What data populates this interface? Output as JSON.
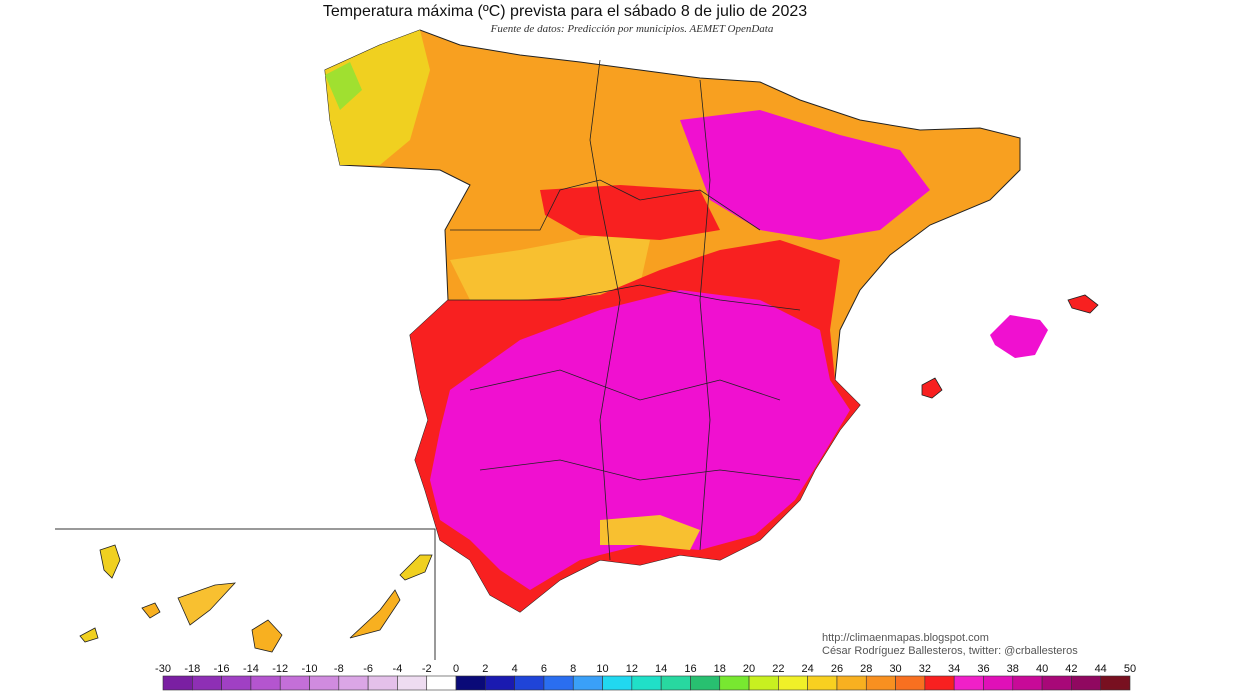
{
  "header": {
    "title": "Temperatura máxima (ºC) prevista para el sábado 8 de julio de 2023",
    "subtitle": "Fuente de datos: Predicción por municipios. AEMET OpenData"
  },
  "credits": [
    "http://climaenmapas.blogspot.com",
    "César Rodríguez Ballesteros, twitter: @crballesteros"
  ],
  "legend": {
    "ticks": [
      -30,
      -18,
      -16,
      -14,
      -12,
      -10,
      -8,
      -6,
      -4,
      -2,
      0,
      2,
      4,
      6,
      8,
      10,
      12,
      14,
      16,
      18,
      20,
      22,
      24,
      26,
      28,
      30,
      32,
      34,
      36,
      38,
      40,
      42,
      44,
      50
    ],
    "colors": [
      "#7a1fa2",
      "#8e2fb5",
      "#a040c4",
      "#b455cf",
      "#c46fd8",
      "#d08bdf",
      "#dba6e6",
      "#e4c0ea",
      "#eedcf1",
      "#ffffff",
      "#0a0a78",
      "#1a1ab0",
      "#1f44d8",
      "#2a6ef0",
      "#3aa0f8",
      "#21d8f0",
      "#20e0c8",
      "#28d8a0",
      "#28c070",
      "#78e830",
      "#c8f020",
      "#f0f028",
      "#f8d020",
      "#f8b020",
      "#f89020",
      "#f87020",
      "#f82020",
      "#f020c8",
      "#e010b8",
      "#c80a98",
      "#a80878",
      "#900860",
      "#781020"
    ]
  }
}
